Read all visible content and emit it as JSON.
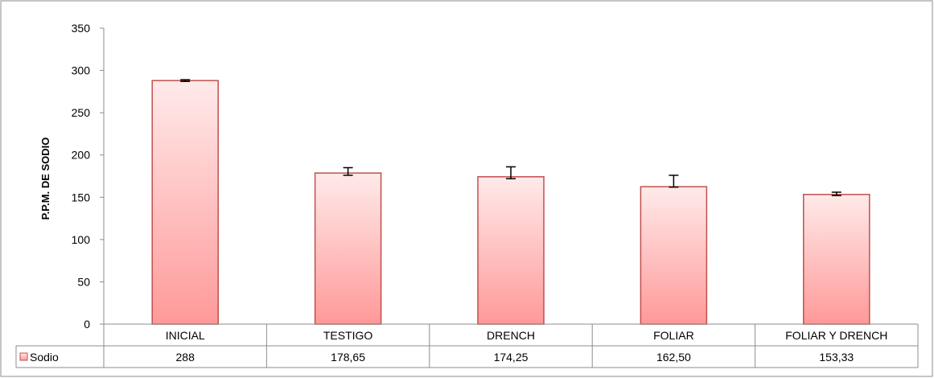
{
  "chart_data": {
    "type": "bar",
    "title": "",
    "xlabel": "",
    "ylabel": "P.P.M. DE  SODIO",
    "ylim": [
      0,
      350
    ],
    "yticks": [
      0,
      50,
      100,
      150,
      200,
      250,
      300,
      350
    ],
    "grid": false,
    "legend": "data-table-left",
    "categories": [
      "INICIAL",
      "TESTIGO",
      "DRENCH",
      "FOLIAR",
      "FOLIAR Y DRENCH"
    ],
    "series": [
      {
        "name": "Sodio",
        "values": [
          288,
          178.65,
          174.25,
          162.5,
          153.33
        ],
        "error_bars": [
          [
            287,
            289
          ],
          [
            176,
            185
          ],
          [
            172,
            186
          ],
          [
            162,
            176
          ],
          [
            152,
            156
          ]
        ],
        "table_labels": [
          "288",
          "178,65",
          "174,25",
          "162,50",
          "153,33"
        ],
        "color": "#ff9999",
        "edge_color": "#c0504d"
      }
    ]
  }
}
